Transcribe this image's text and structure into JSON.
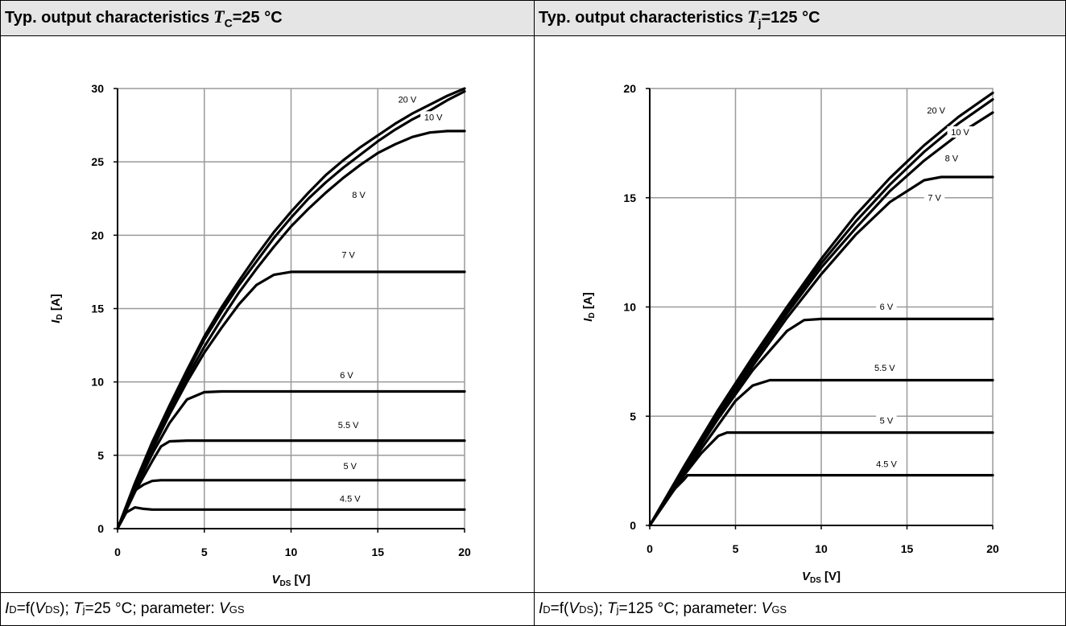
{
  "panels": [
    {
      "header": {
        "text": "Typ. output characteristics",
        "sym": "T",
        "sub": "C",
        "cond": "=25 °C"
      },
      "caption": {
        "id_sym": "I",
        "id_sub": "D",
        "f": "=f(",
        "v_sym": "V",
        "v_sub": "DS",
        "tj_pre": "); ",
        "tj_sym": "T",
        "tj_sub": "j",
        "tj_val": "=25 °C; parameter: ",
        "p_sym": "V",
        "p_sub": "GS"
      }
    },
    {
      "header": {
        "text": "Typ. output characteristics",
        "sym": "T",
        "sub": "j",
        "cond": "=125 °C"
      },
      "caption": {
        "id_sym": "I",
        "id_sub": "D",
        "f": "=f(",
        "v_sym": "V",
        "v_sub": "DS",
        "tj_pre": "); ",
        "tj_sym": "T",
        "tj_sub": "j",
        "tj_val": "=125 °C; parameter: ",
        "p_sym": "V",
        "p_sub": "GS"
      }
    }
  ],
  "chart_data": [
    {
      "type": "line",
      "xlabel": "V_DS [V]",
      "ylabel": "I_D [A]",
      "xlabel_sym": "V",
      "xlabel_sub": "DS",
      "xlabel_unit": " [V]",
      "ylabel_sym": "I",
      "ylabel_sub": "D",
      "ylabel_unit": " [A]",
      "xlim": [
        0,
        20
      ],
      "ylim": [
        0,
        30
      ],
      "xticks": [
        0,
        5,
        10,
        15,
        20
      ],
      "yticks": [
        0,
        5,
        10,
        15,
        20,
        25,
        30
      ],
      "grid": true,
      "series": [
        {
          "name": "20 V",
          "x": [
            0,
            1,
            2,
            3,
            4,
            5,
            6,
            7,
            8,
            9,
            10,
            11,
            12,
            13,
            14,
            15,
            16,
            17,
            18,
            19,
            20
          ],
          "y": [
            0,
            3.1,
            5.9,
            8.4,
            10.8,
            13.1,
            15.1,
            16.9,
            18.6,
            20.2,
            21.6,
            22.9,
            24.1,
            25.1,
            26.0,
            26.8,
            27.6,
            28.3,
            28.9,
            29.5,
            30.0
          ]
        },
        {
          "name": "10 V",
          "x": [
            0,
            1,
            2,
            3,
            4,
            5,
            6,
            7,
            8,
            9,
            10,
            11,
            12,
            13,
            14,
            15,
            16,
            17,
            18,
            19,
            20
          ],
          "y": [
            0,
            3.0,
            5.8,
            8.3,
            10.6,
            12.9,
            14.8,
            16.6,
            18.2,
            19.8,
            21.2,
            22.5,
            23.6,
            24.6,
            25.5,
            26.4,
            27.2,
            27.9,
            28.5,
            29.2,
            29.8
          ]
        },
        {
          "name": "8 V",
          "x": [
            0,
            1,
            2,
            3,
            4,
            5,
            6,
            7,
            8,
            9,
            10,
            11,
            12,
            13,
            14,
            15,
            16,
            17,
            18,
            19,
            20
          ],
          "y": [
            0,
            2.9,
            5.6,
            8.0,
            10.3,
            12.4,
            14.3,
            16.1,
            17.7,
            19.2,
            20.6,
            21.8,
            22.9,
            23.9,
            24.8,
            25.6,
            26.2,
            26.7,
            27.0,
            27.1,
            27.1
          ]
        },
        {
          "name": "7 V",
          "x": [
            0,
            1,
            2,
            3,
            4,
            5,
            6,
            7,
            8,
            9,
            10,
            11,
            12,
            13,
            14,
            15,
            16,
            17,
            18,
            19,
            20
          ],
          "y": [
            0,
            2.8,
            5.4,
            7.8,
            10.0,
            12.0,
            13.7,
            15.3,
            16.6,
            17.3,
            17.5,
            17.5,
            17.5,
            17.5,
            17.5,
            17.5,
            17.5,
            17.5,
            17.5,
            17.5,
            17.5
          ]
        },
        {
          "name": "6 V",
          "x": [
            0,
            1,
            2,
            3,
            4,
            5,
            6,
            8,
            10,
            12,
            14,
            16,
            18,
            20
          ],
          "y": [
            0,
            2.7,
            5.1,
            7.2,
            8.8,
            9.3,
            9.35,
            9.35,
            9.35,
            9.35,
            9.35,
            9.35,
            9.35,
            9.35
          ]
        },
        {
          "name": "5.5 V",
          "x": [
            0,
            1,
            2,
            2.5,
            3,
            4,
            6,
            8,
            10,
            12,
            14,
            16,
            18,
            20
          ],
          "y": [
            0,
            2.5,
            4.6,
            5.6,
            5.95,
            6.0,
            6.0,
            6.0,
            6.0,
            6.0,
            6.0,
            6.0,
            6.0,
            6.0
          ]
        },
        {
          "name": "5 V",
          "x": [
            0,
            0.5,
            1,
            1.5,
            2,
            2.5,
            4,
            6,
            8,
            10,
            12,
            14,
            16,
            18,
            20
          ],
          "y": [
            0,
            1.4,
            2.6,
            3.0,
            3.25,
            3.3,
            3.3,
            3.3,
            3.3,
            3.3,
            3.3,
            3.3,
            3.3,
            3.3,
            3.3
          ]
        },
        {
          "name": "4.5 V",
          "x": [
            0,
            0.5,
            1,
            1.5,
            2,
            4,
            6,
            8,
            10,
            12,
            14,
            16,
            18,
            20
          ],
          "y": [
            0,
            1.1,
            1.45,
            1.35,
            1.3,
            1.3,
            1.3,
            1.3,
            1.3,
            1.3,
            1.3,
            1.3,
            1.3,
            1.3
          ]
        }
      ],
      "annotations": [
        {
          "text": "20 V",
          "x": 16.7,
          "y": 29.1
        },
        {
          "text": "10 V",
          "x": 18.2,
          "y": 27.9
        },
        {
          "text": "8 V",
          "x": 13.9,
          "y": 22.6
        },
        {
          "text": "7 V",
          "x": 13.3,
          "y": 18.5
        },
        {
          "text": "6 V",
          "x": 13.2,
          "y": 10.3
        },
        {
          "text": "5.5 V",
          "x": 13.3,
          "y": 6.9
        },
        {
          "text": "5 V",
          "x": 13.4,
          "y": 4.1
        },
        {
          "text": "4.5 V",
          "x": 13.4,
          "y": 1.9
        }
      ]
    },
    {
      "type": "line",
      "xlabel": "V_DS [V]",
      "ylabel": "I_D [A]",
      "xlabel_sym": "V",
      "xlabel_sub": "DS",
      "xlabel_unit": " [V]",
      "ylabel_sym": "I",
      "ylabel_sub": "D",
      "ylabel_unit": " [A]",
      "xlim": [
        0,
        20
      ],
      "ylim": [
        0,
        20
      ],
      "xticks": [
        0,
        5,
        10,
        15,
        20
      ],
      "yticks": [
        0,
        5,
        10,
        15,
        20
      ],
      "grid": true,
      "series": [
        {
          "name": "20 V",
          "x": [
            0,
            2,
            4,
            6,
            8,
            10,
            12,
            14,
            16,
            18,
            20
          ],
          "y": [
            0,
            2.7,
            5.3,
            7.7,
            10.0,
            12.2,
            14.2,
            15.9,
            17.4,
            18.7,
            19.8
          ]
        },
        {
          "name": "10 V",
          "x": [
            0,
            2,
            4,
            6,
            8,
            10,
            12,
            14,
            16,
            18,
            20
          ],
          "y": [
            0,
            2.65,
            5.2,
            7.6,
            9.85,
            12.0,
            13.9,
            15.6,
            17.1,
            18.4,
            19.5
          ]
        },
        {
          "name": "8 V",
          "x": [
            0,
            2,
            4,
            6,
            8,
            10,
            12,
            14,
            16,
            18,
            20
          ],
          "y": [
            0,
            2.6,
            5.1,
            7.5,
            9.7,
            11.8,
            13.6,
            15.3,
            16.7,
            17.9,
            18.9
          ]
        },
        {
          "name": "7 V",
          "x": [
            0,
            2,
            4,
            6,
            8,
            10,
            12,
            14,
            16,
            17,
            18,
            20
          ],
          "y": [
            0,
            2.55,
            5.0,
            7.3,
            9.5,
            11.5,
            13.3,
            14.8,
            15.8,
            15.95,
            15.95,
            15.95
          ]
        },
        {
          "name": "6 V",
          "x": [
            0,
            2,
            4,
            6,
            8,
            9,
            10,
            12,
            14,
            16,
            18,
            20
          ],
          "y": [
            0,
            2.5,
            4.9,
            7.1,
            8.9,
            9.4,
            9.45,
            9.45,
            9.45,
            9.45,
            9.45,
            9.45
          ]
        },
        {
          "name": "5.5 V",
          "x": [
            0,
            2,
            4,
            5,
            6,
            7,
            8,
            10,
            12,
            14,
            16,
            18,
            20
          ],
          "y": [
            0,
            2.4,
            4.6,
            5.7,
            6.4,
            6.65,
            6.65,
            6.65,
            6.65,
            6.65,
            6.65,
            6.65,
            6.65
          ]
        },
        {
          "name": "5 V",
          "x": [
            0,
            1,
            2,
            3,
            4,
            4.5,
            5,
            6,
            8,
            10,
            12,
            14,
            16,
            18,
            20
          ],
          "y": [
            0,
            1.15,
            2.3,
            3.3,
            4.1,
            4.25,
            4.25,
            4.25,
            4.25,
            4.25,
            4.25,
            4.25,
            4.25,
            4.25,
            4.25
          ]
        },
        {
          "name": "4.5 V",
          "x": [
            0,
            1,
            1.5,
            2,
            2.2,
            3,
            4,
            6,
            8,
            10,
            12,
            14,
            16,
            18,
            20
          ],
          "y": [
            0,
            1.2,
            1.7,
            2.1,
            2.3,
            2.3,
            2.3,
            2.3,
            2.3,
            2.3,
            2.3,
            2.3,
            2.3,
            2.3,
            2.3
          ]
        }
      ],
      "annotations": [
        {
          "text": "20 V",
          "x": 16.7,
          "y": 18.9
        },
        {
          "text": "10 V",
          "x": 18.1,
          "y": 17.9
        },
        {
          "text": "8 V",
          "x": 17.6,
          "y": 16.7
        },
        {
          "text": "7 V",
          "x": 16.6,
          "y": 14.9
        },
        {
          "text": "6 V",
          "x": 13.8,
          "y": 9.9
        },
        {
          "text": "5.5 V",
          "x": 13.7,
          "y": 7.1
        },
        {
          "text": "5 V",
          "x": 13.8,
          "y": 4.7
        },
        {
          "text": "4.5 V",
          "x": 13.8,
          "y": 2.7
        }
      ]
    }
  ]
}
